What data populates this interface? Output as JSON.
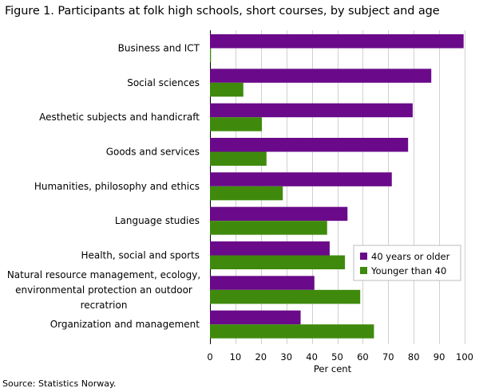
{
  "title": "Figure 1. Participants at folk high schools, short courses, by subject and age",
  "source": "Source: Statistics Norway.",
  "chart_data": {
    "type": "bar",
    "orientation": "horizontal",
    "categories": [
      "Business and ICT",
      "Social sciences",
      "Aesthetic subjects and handicraft",
      "Goods and services",
      "Humanities, philosophy and ethics",
      "Language studies",
      "Health, social and sports",
      "Natural resource management, ecology, environmental protection an outdoor recratrion",
      "Organization and management"
    ],
    "category_label_lines": [
      [
        "Business and ICT"
      ],
      [
        "Social sciences"
      ],
      [
        "Aesthetic subjects and handicraft"
      ],
      [
        "Goods and services"
      ],
      [
        "Humanities, philosophy and ethics"
      ],
      [
        "Language studies"
      ],
      [
        "Health, social and sports"
      ],
      [
        "Natural resource management, ecology,",
        "environmental protection an outdoor",
        "recratrion"
      ],
      [
        "Organization and management"
      ]
    ],
    "series": [
      {
        "name": "40 years or older",
        "color": "#6a0a8a",
        "values": [
          99.6,
          86.9,
          79.6,
          77.8,
          71.4,
          54.0,
          47.0,
          41.0,
          35.6
        ]
      },
      {
        "name": "Younger than 40",
        "color": "#3f8a0d",
        "values": [
          0.4,
          13.1,
          20.4,
          22.2,
          28.6,
          46.0,
          53.0,
          59.0,
          64.4
        ]
      }
    ],
    "xlabel": "Per cent",
    "xlim": [
      0,
      100
    ],
    "xticks": [
      0,
      10,
      20,
      30,
      40,
      50,
      60,
      70,
      80,
      90,
      100
    ],
    "grid": true,
    "legend": "lower-right"
  }
}
